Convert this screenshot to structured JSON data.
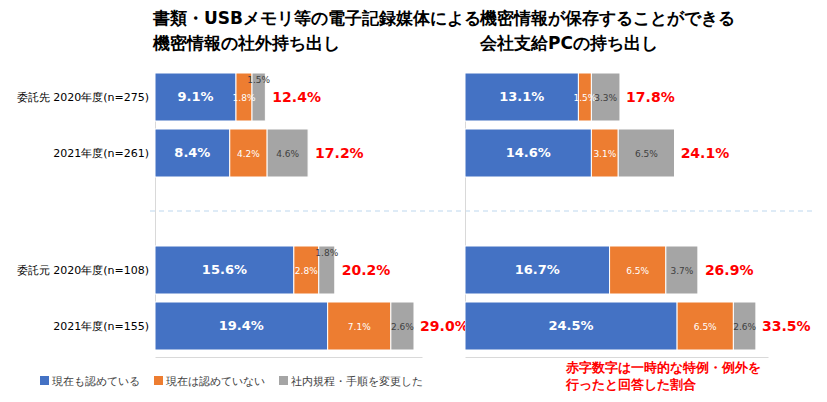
{
  "chart_data": [
    {
      "type": "bar",
      "orientation": "horizontal",
      "stacked": true,
      "data_labels": true,
      "tick_labels": "y",
      "legend": "bottom",
      "title": [
        "書類・USBメモリ等の電子記録媒体による",
        "機密情報の社外持ち出し"
      ],
      "categories": [
        "委託先 2020年度(n=275)",
        "2021年度(n=261)",
        "委託元 2020年度(n=108)",
        "2021年度(n=155)"
      ],
      "xlim": [
        0,
        30
      ],
      "xticks": [],
      "series": [
        {
          "name": "現在も認めている",
          "color": "#4472c4",
          "values": [
            9.1,
            8.4,
            15.6,
            19.4
          ],
          "value_labels": [
            "9.1%",
            "8.4%",
            "15.6%",
            "19.4%"
          ]
        },
        {
          "name": "現在は認めていない",
          "color": "#ed7d31",
          "values": [
            1.8,
            4.2,
            2.8,
            7.1
          ],
          "value_labels": [
            "1.8%",
            "4.2%",
            "2.8%",
            "7.1%"
          ]
        },
        {
          "name": "社内規程・手順を変更した",
          "color": "#a5a5a5",
          "values": [
            1.5,
            4.6,
            1.8,
            2.6
          ],
          "value_labels": [
            "1.5%",
            "4.6%",
            "1.8%",
            "2.6%"
          ]
        }
      ],
      "totals": [
        12.4,
        17.2,
        20.2,
        29.0
      ],
      "total_labels": [
        "12.4%",
        "17.2%",
        "20.2%",
        "29.0%"
      ]
    },
    {
      "type": "bar",
      "orientation": "horizontal",
      "stacked": true,
      "data_labels": true,
      "tick_labels": false,
      "title": [
        "機密情報が保存することができる",
        "会社支給PCの持ち出し"
      ],
      "categories": [
        null,
        null,
        null,
        null
      ],
      "xlim": [
        0,
        35
      ],
      "xticks": [],
      "series": [
        {
          "color": "#4472c4",
          "values": [
            13.1,
            14.6,
            16.7,
            24.5
          ],
          "value_labels": [
            "13.1%",
            "14.6%",
            "16.7%",
            "24.5%"
          ]
        },
        {
          "color": "#ed7d31",
          "values": [
            1.5,
            3.1,
            6.5,
            6.5
          ],
          "value_labels": [
            "1.5%",
            "3.1%",
            "6.5%",
            "6.5%"
          ]
        },
        {
          "color": "#a5a5a5",
          "values": [
            3.3,
            6.5,
            3.7,
            2.6
          ],
          "value_labels": [
            "3.3%",
            "6.5%",
            "3.7%",
            "2.6%"
          ]
        }
      ],
      "totals": [
        17.8,
        24.1,
        26.9,
        33.5
      ],
      "total_labels": [
        "17.8%",
        "24.1%",
        "26.9%",
        "33.5%"
      ],
      "annotation": [
        "赤字数字は一時的な特例・例外を",
        "行ったと回答した割合"
      ]
    }
  ]
}
